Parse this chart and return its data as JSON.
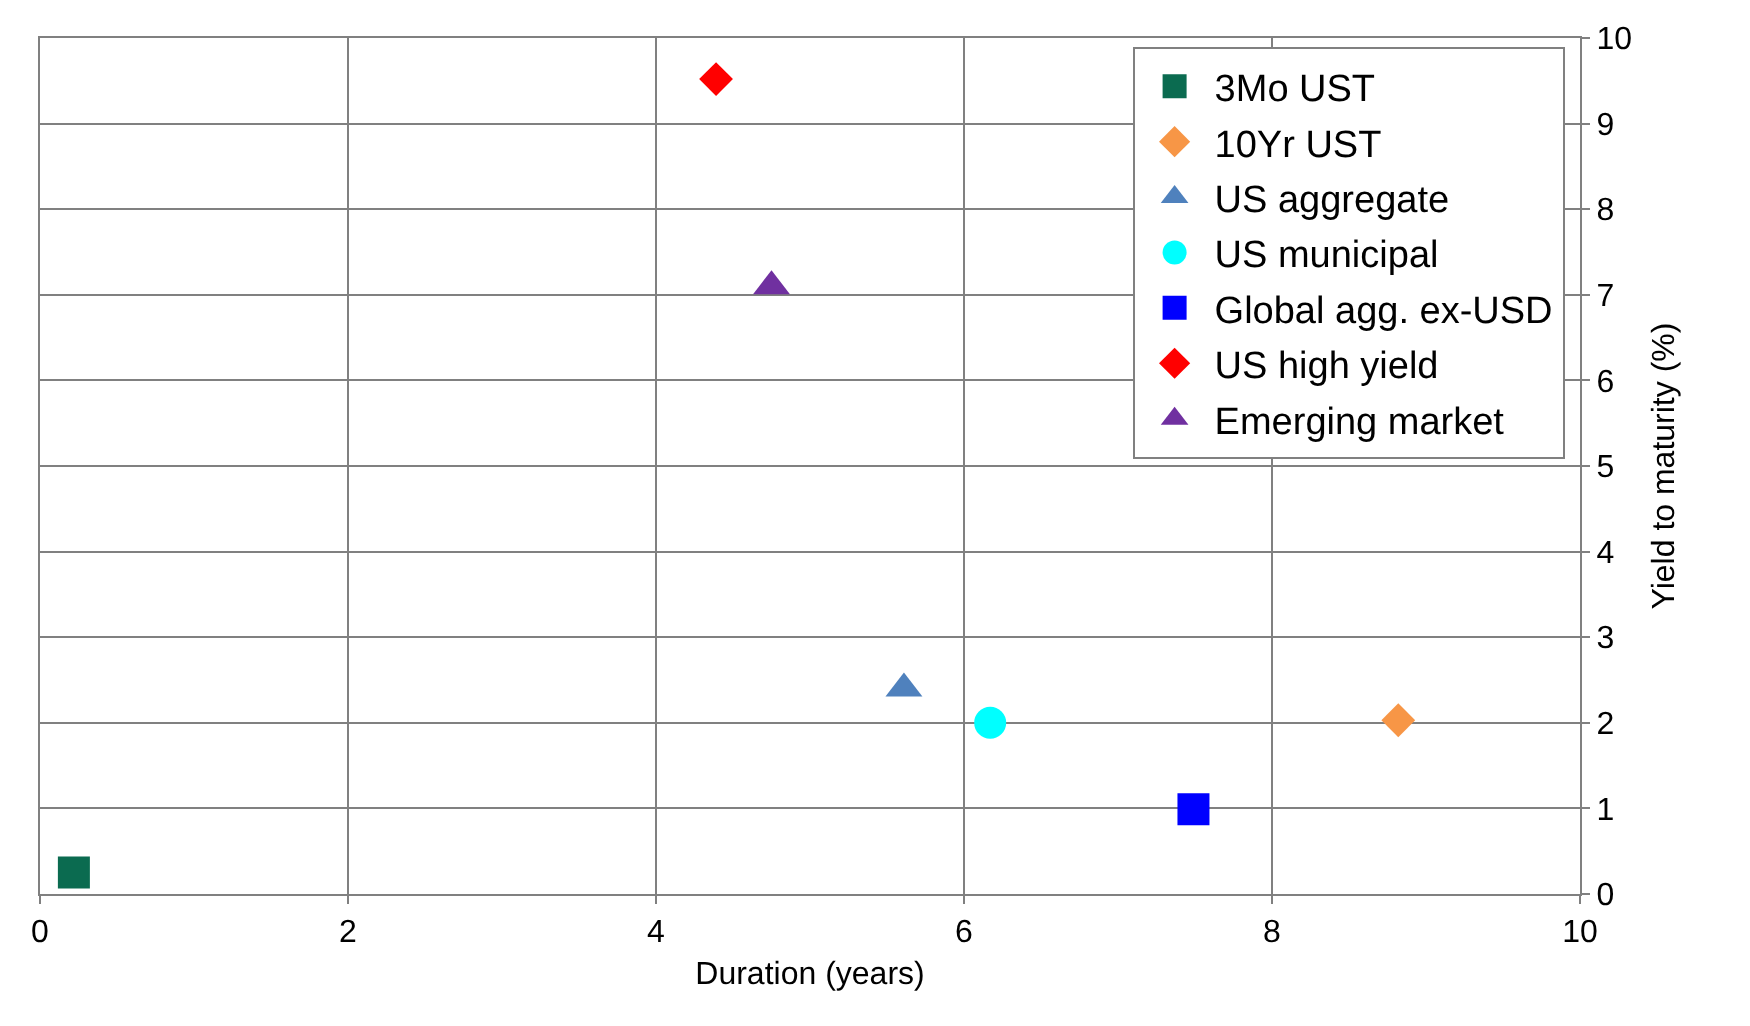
{
  "chart_data": {
    "type": "scatter",
    "xlabel": "Duration (years)",
    "ylabel": "Yield to maturity (%)",
    "xlim": [
      0,
      10
    ],
    "xticks": [
      0,
      2,
      4,
      6,
      8,
      10
    ],
    "ylim": [
      0,
      10
    ],
    "yticks": [
      0,
      1,
      2,
      3,
      4,
      5,
      6,
      7,
      8,
      9,
      10
    ],
    "grid": true,
    "legend": "top right",
    "series": [
      {
        "name": "3Mo UST",
        "color": "#0b6b50",
        "marker": "square",
        "x": [
          0.22
        ],
        "values": [
          0.25
        ]
      },
      {
        "name": "10Yr UST",
        "color": "#f79646",
        "marker": "diamond",
        "x": [
          8.82
        ],
        "values": [
          2.03
        ]
      },
      {
        "name": "US aggregate",
        "color": "#4f81bd",
        "marker": "triangle",
        "x": [
          5.61
        ],
        "values": [
          2.4
        ]
      },
      {
        "name": "US municipal",
        "color": "#00ffff",
        "marker": "circle",
        "x": [
          6.17
        ],
        "values": [
          2.0
        ]
      },
      {
        "name": "Global agg. ex-USD",
        "color": "#0000ff",
        "marker": "square",
        "x": [
          7.49
        ],
        "values": [
          0.99
        ]
      },
      {
        "name": "US high yield",
        "color": "#ff0000",
        "marker": "diamond",
        "x": [
          4.39
        ],
        "values": [
          9.52
        ]
      },
      {
        "name": "Emerging market",
        "color": "#7030a0",
        "marker": "triangle",
        "x": [
          4.75
        ],
        "values": [
          7.1
        ]
      }
    ]
  }
}
